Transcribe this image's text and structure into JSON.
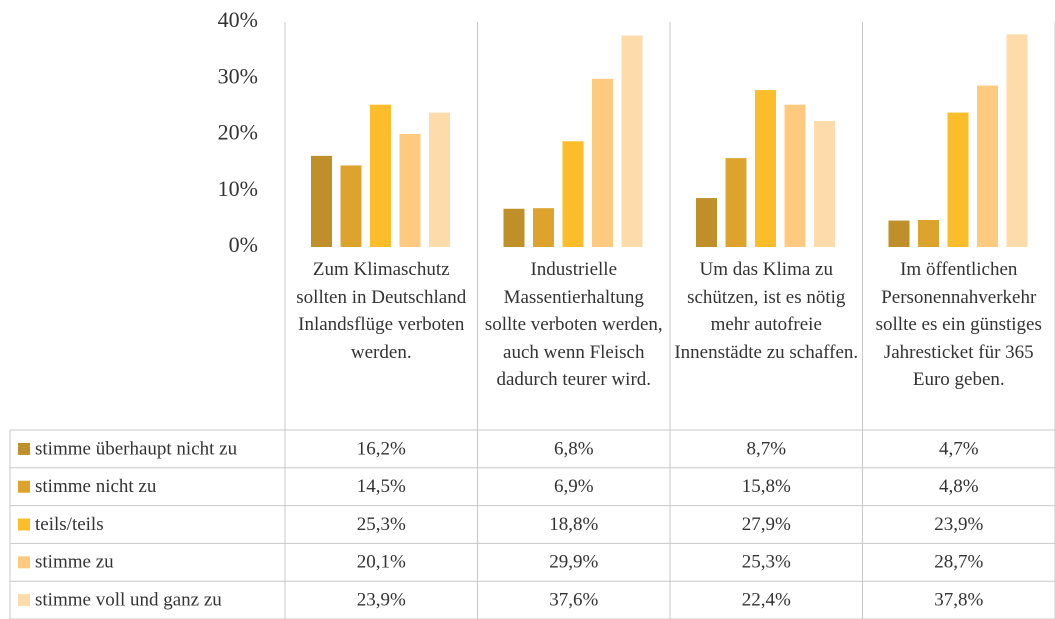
{
  "chart_data": {
    "type": "bar",
    "categories": [
      "Zum Klimaschutz sollten in Deutschland Inlandsflüge verboten werden.",
      "Industrielle Massentierhaltung sollte verboten werden, auch wenn Fleisch dadurch teurer wird.",
      "Um das Klima zu schützen, ist es nötig mehr autofreie Innenstädte zu schaffen.",
      "Im öffentlichen Personennahverkehr sollte es ein günstiges Jahresticket für 365 Euro geben."
    ],
    "series": [
      {
        "name": "stimme überhaupt nicht zu",
        "color": "#bf8f2a",
        "values": [
          16.2,
          6.8,
          8.7,
          4.7
        ],
        "value_labels": [
          "16,2%",
          "6,8%",
          "8,7%",
          "4,7%"
        ]
      },
      {
        "name": "stimme nicht zu",
        "color": "#dca42c",
        "values": [
          14.5,
          6.9,
          15.8,
          4.8
        ],
        "value_labels": [
          "14,5%",
          "6,9%",
          "15,8%",
          "4,8%"
        ]
      },
      {
        "name": "teils/teils",
        "color": "#fbbd2a",
        "values": [
          25.3,
          18.8,
          27.9,
          23.9
        ],
        "value_labels": [
          "25,3%",
          "18,8%",
          "27,9%",
          "23,9%"
        ]
      },
      {
        "name": "stimme zu",
        "color": "#fdca7f",
        "values": [
          20.1,
          29.9,
          25.3,
          28.7
        ],
        "value_labels": [
          "20,1%",
          "29,9%",
          "25,3%",
          "28,7%"
        ]
      },
      {
        "name": "stimme voll und ganz zu",
        "color": "#fddbaa",
        "values": [
          23.9,
          37.6,
          22.4,
          37.8
        ],
        "value_labels": [
          "23,9%",
          "37,6%",
          "22,4%",
          "37,8%"
        ]
      }
    ],
    "ylim": [
      0,
      40
    ],
    "yticks": [
      {
        "value": 0,
        "label": "0%"
      },
      {
        "value": 10,
        "label": "10%"
      },
      {
        "value": 20,
        "label": "20%"
      },
      {
        "value": 30,
        "label": "30%"
      },
      {
        "value": 40,
        "label": "40%"
      }
    ]
  }
}
